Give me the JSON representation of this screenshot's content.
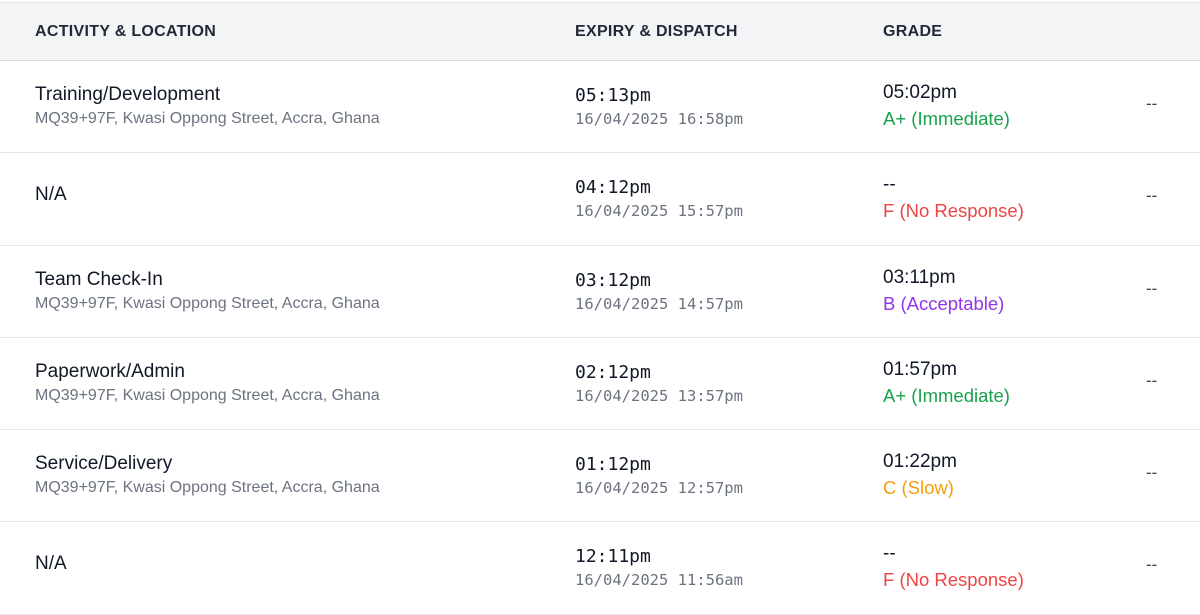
{
  "table": {
    "headers": {
      "activity": "ACTIVITY & LOCATION",
      "expiry": "EXPIRY & DISPATCH",
      "grade": "GRADE",
      "extra": ""
    },
    "grade_colors": {
      "A+": "#16a34a",
      "B": "#9333ea",
      "C": "#f59e0b",
      "F": "#ef4444"
    },
    "rows": [
      {
        "activity": "Training/Development",
        "location": "MQ39+97F, Kwasi Oppong Street, Accra, Ghana",
        "expiry_time": "05:13pm",
        "dispatch": "16/04/2025 16:58pm",
        "grade_time": "05:02pm",
        "grade": "A+ (Immediate)",
        "grade_color": "#16a34a",
        "extra": "--"
      },
      {
        "activity": "N/A",
        "location": "",
        "expiry_time": "04:12pm",
        "dispatch": "16/04/2025 15:57pm",
        "grade_time": "--",
        "grade": "F (No Response)",
        "grade_color": "#ef4444",
        "extra": "--"
      },
      {
        "activity": "Team Check-In",
        "location": "MQ39+97F, Kwasi Oppong Street, Accra, Ghana",
        "expiry_time": "03:12pm",
        "dispatch": "16/04/2025 14:57pm",
        "grade_time": "03:11pm",
        "grade": "B (Acceptable)",
        "grade_color": "#9333ea",
        "extra": "--"
      },
      {
        "activity": "Paperwork/Admin",
        "location": "MQ39+97F, Kwasi Oppong Street, Accra, Ghana",
        "expiry_time": "02:12pm",
        "dispatch": "16/04/2025 13:57pm",
        "grade_time": "01:57pm",
        "grade": "A+ (Immediate)",
        "grade_color": "#16a34a",
        "extra": "--"
      },
      {
        "activity": "Service/Delivery",
        "location": "MQ39+97F, Kwasi Oppong Street, Accra, Ghana",
        "expiry_time": "01:12pm",
        "dispatch": "16/04/2025 12:57pm",
        "grade_time": "01:22pm",
        "grade": "C (Slow)",
        "grade_color": "#f59e0b",
        "extra": "--"
      },
      {
        "activity": "N/A",
        "location": "",
        "expiry_time": "12:11pm",
        "dispatch": "16/04/2025 11:56am",
        "grade_time": "--",
        "grade": "F (No Response)",
        "grade_color": "#ef4444",
        "extra": "--"
      }
    ]
  }
}
